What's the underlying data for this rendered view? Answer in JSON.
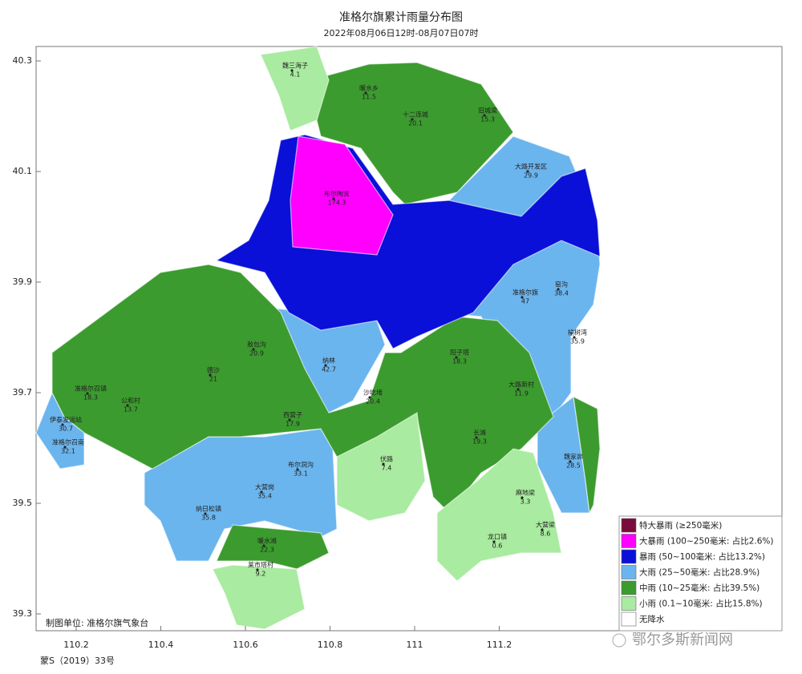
{
  "header": {
    "title": "准格尔旗累计雨量分布图",
    "subtitle": "2022年08月06日12时-08月07日07时"
  },
  "axes": {
    "lat_ticks": [
      "40.3",
      "40.1",
      "39.9",
      "39.7",
      "39.5",
      "39.3"
    ],
    "lon_ticks": [
      "110.2",
      "110.4",
      "110.6",
      "110.8",
      "111",
      "111.2"
    ]
  },
  "stations": [
    {
      "name": "魏三海子",
      "value": "4.1"
    },
    {
      "name": "暖水乡",
      "value": "11.5"
    },
    {
      "name": "十二连城",
      "value": "20.1"
    },
    {
      "name": "旧城梁",
      "value": "15.3"
    },
    {
      "name": "大路开发区",
      "value": "29.9"
    },
    {
      "name": "布尔陶亥",
      "value": "174.3"
    },
    {
      "name": "纳林",
      "value": "42.7"
    },
    {
      "name": "准格尔旗",
      "value": "47"
    },
    {
      "name": "窑沟",
      "value": "38.4"
    },
    {
      "name": "榆树湾",
      "value": "35.9"
    },
    {
      "name": "阳子塔",
      "value": "18.3"
    },
    {
      "name": "大路新村",
      "value": "11.9"
    },
    {
      "name": "沙圪堵",
      "value": "20.4"
    },
    {
      "name": "长滩",
      "value": "19.3"
    },
    {
      "name": "伏路",
      "value": "7.4"
    },
    {
      "name": "西营子",
      "value": "17.9"
    },
    {
      "name": "敖包沟",
      "value": "20.9"
    },
    {
      "name": "德沙",
      "value": "21"
    },
    {
      "name": "准格尔召镇",
      "value": "18.3"
    },
    {
      "name": "公和村",
      "value": "13.7"
    },
    {
      "name": "伊泰发运站",
      "value": "30.7"
    },
    {
      "name": "准格尔召南",
      "value": "32.1"
    },
    {
      "name": "布尔洞沟",
      "value": "33.1"
    },
    {
      "name": "大营岗",
      "value": "35.4"
    },
    {
      "name": "纳日松镇",
      "value": "35.8"
    },
    {
      "name": "暖水滩",
      "value": "22.3"
    },
    {
      "name": "莱市塔村",
      "value": "9.2"
    },
    {
      "name": "麻地梁",
      "value": "3.3"
    },
    {
      "name": "大营梁",
      "value": "8.6"
    },
    {
      "name": "龙口镇",
      "value": "0.6"
    },
    {
      "name": "魏家峁",
      "value": "28.5"
    }
  ],
  "legend": [
    {
      "label": "特大暴雨 (≥250毫米)",
      "color": "#7a0b3d"
    },
    {
      "label": "大暴雨 (100~250毫米:  占比2.6%)",
      "color": "#ff00ff"
    },
    {
      "label": "暴雨 (50~100毫米:  占比13.2%)",
      "color": "#0a10d8"
    },
    {
      "label": "大雨 (25~50毫米:  占比28.9%)",
      "color": "#6bb5ee"
    },
    {
      "label": "中雨 (10~25毫米:  占比39.5%)",
      "color": "#3c9b2f"
    },
    {
      "label": "小雨 (0.1~10毫米:  占比15.8%)",
      "color": "#a9eba0"
    },
    {
      "label": "无降水",
      "color": "#ffffff"
    }
  ],
  "footer": {
    "credit": "制图单位: 准格尔旗气象台",
    "approval": "蒙S（2019）33号",
    "watermark": "鄂尔多斯新闻网"
  }
}
